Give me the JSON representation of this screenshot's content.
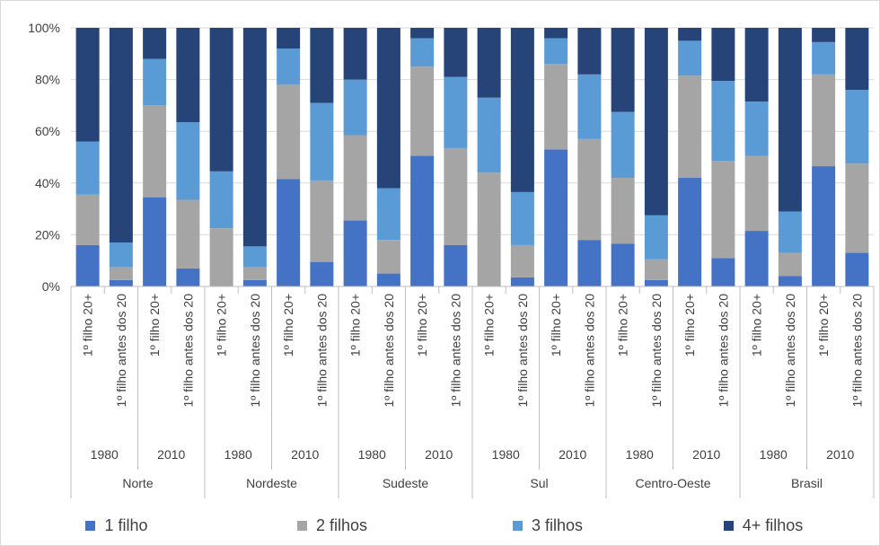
{
  "chart_data": {
    "type": "bar",
    "stacked": true,
    "percent": true,
    "grid": true,
    "legend_position": "bottom",
    "y_ticks": [
      "0%",
      "20%",
      "40%",
      "60%",
      "80%",
      "100%"
    ],
    "ylim": [
      0,
      100
    ],
    "regions": [
      "Norte",
      "Nordeste",
      "Sudeste",
      "Sul",
      "Centro-Oeste",
      "Brasil"
    ],
    "years": [
      "1980",
      "2010"
    ],
    "groups": [
      "1º filho 20+",
      "1º filho antes dos 20"
    ],
    "categories": [
      "Norte|1980|1º filho 20+",
      "Norte|1980|1º filho antes dos 20",
      "Norte|2010|1º filho 20+",
      "Norte|2010|1º filho antes dos 20",
      "Nordeste|1980|1º filho 20+",
      "Nordeste|1980|1º filho antes dos 20",
      "Nordeste|2010|1º filho 20+",
      "Nordeste|2010|1º filho antes dos 20",
      "Sudeste|1980|1º filho 20+",
      "Sudeste|1980|1º filho antes dos 20",
      "Sudeste|2010|1º filho 20+",
      "Sudeste|2010|1º filho antes dos 20",
      "Sul|1980|1º filho 20+",
      "Sul|1980|1º filho antes dos 20",
      "Sul|2010|1º filho 20+",
      "Sul|2010|1º filho antes dos 20",
      "Centro-Oeste|1980|1º filho 20+",
      "Centro-Oeste|1980|1º filho antes dos 20",
      "Centro-Oeste|2010|1º filho 20+",
      "Centro-Oeste|2010|1º filho antes dos 20",
      "Brasil|1980|1º filho 20+",
      "Brasil|1980|1º filho antes dos 20",
      "Brasil|2010|1º filho 20+",
      "Brasil|2010|1º filho antes dos 20"
    ],
    "series": [
      {
        "name": "1 filho",
        "color": "#4472c4",
        "values": [
          16,
          2.5,
          34.5,
          7,
          0,
          2.5,
          41.5,
          9.5,
          25.5,
          5,
          50.5,
          16,
          0,
          3.5,
          53,
          18,
          16.5,
          2.5,
          42,
          11,
          21.5,
          4,
          46.5,
          13
        ]
      },
      {
        "name": "2 filhos",
        "color": "#a5a5a5",
        "values": [
          19.5,
          5,
          35.5,
          26.5,
          22.5,
          5,
          36.5,
          31.5,
          33,
          13,
          34.5,
          37.5,
          44,
          12.5,
          33,
          39,
          25.5,
          8,
          39.5,
          37.5,
          29,
          9,
          35.5,
          34.5
        ]
      },
      {
        "name": "3 filhos",
        "color": "#5b9bd5",
        "values": [
          20.5,
          9.5,
          18,
          30,
          22,
          8,
          14,
          30,
          21.5,
          20,
          11,
          27.5,
          29,
          20.5,
          10,
          25,
          25.5,
          17,
          13.5,
          31,
          21,
          16,
          12.5,
          28.5
        ]
      },
      {
        "name": "4+ filhos",
        "color": "#264478",
        "values": [
          44,
          83,
          12,
          36.5,
          55.5,
          84.5,
          8,
          29,
          20,
          62,
          4,
          19,
          27,
          63.5,
          4,
          18,
          32.5,
          72.5,
          5,
          20.5,
          28.5,
          71,
          5.5,
          24
        ]
      }
    ]
  }
}
